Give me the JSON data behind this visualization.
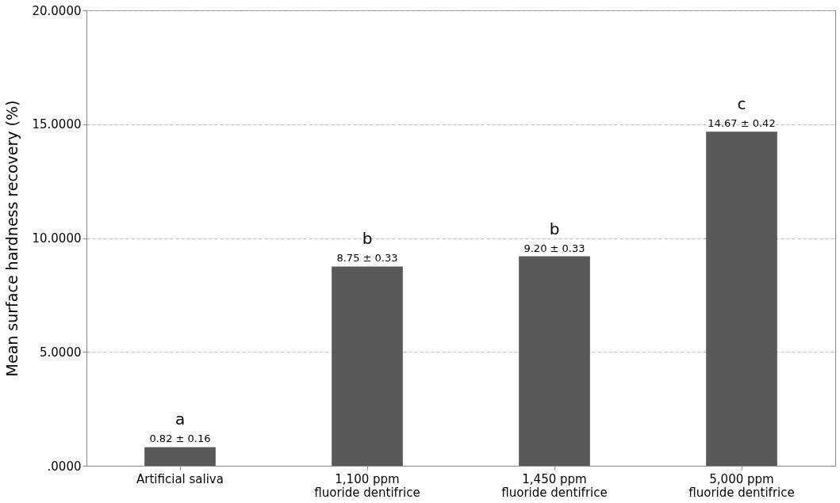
{
  "chart_data": {
    "type": "bar",
    "ylabel": "Mean surface hardness recovery (%)",
    "categories": [
      "Artificial saliva",
      "1,100 ppm fluoride dentifrice",
      "1,450 ppm fluoride dentifrice",
      "5,000 ppm fluoride dentifrice"
    ],
    "values": [
      0.82,
      8.75,
      9.2,
      14.67
    ],
    "color": "#595959",
    "value_labels": [
      "0.82 ± 0.16",
      "8.75 ± 0.33",
      "9.20 ± 0.33",
      "14.67 ± 0.42"
    ],
    "annotations": [
      {
        "text": "a",
        "x": "Artificial saliva",
        "y": 0.82
      },
      {
        "text": "b",
        "x": "1,100 ppm fluoride dentifrice",
        "y": 8.75
      },
      {
        "text": "b",
        "x": "1,450 ppm fluoride dentifrice",
        "y": 9.2
      },
      {
        "text": "c",
        "x": "5,000 ppm fluoride dentifrice",
        "y": 14.67
      }
    ],
    "ylim": [
      0,
      20
    ],
    "yticks": [
      {
        "value": 0,
        "label": ".0000"
      },
      {
        "value": 5,
        "label": "5.0000"
      },
      {
        "value": 10,
        "label": "10.0000"
      },
      {
        "value": 15,
        "label": "15.0000"
      },
      {
        "value": 20,
        "label": "20.0000"
      }
    ],
    "grid": "y"
  }
}
